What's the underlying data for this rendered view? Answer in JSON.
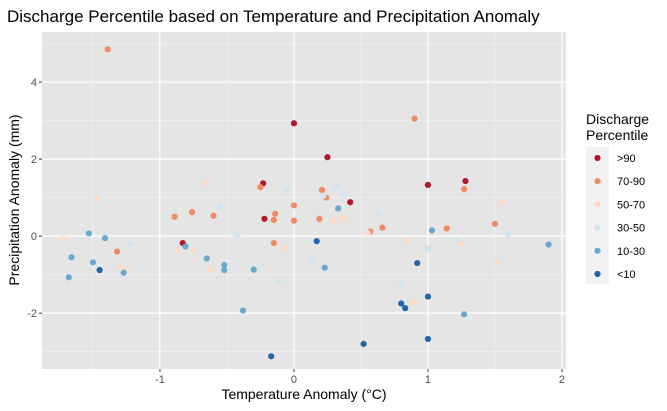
{
  "chart_data": {
    "type": "scatter",
    "title": "Discharge Percentile based on Temperature and Precipitation Anomaly",
    "xlabel": "Temperature Anomaly (°C)",
    "ylabel": "Precipitation Anomaly (mm)",
    "xlim": [
      -1.88,
      2.03
    ],
    "ylim": [
      -3.45,
      5.3
    ],
    "x_ticks": [
      -1,
      0,
      1,
      2
    ],
    "x_tick_labels": [
      "-1",
      "0",
      "1",
      "2"
    ],
    "y_ticks": [
      -2,
      0,
      2,
      4
    ],
    "y_tick_labels": [
      "-2",
      "0",
      "2",
      "4"
    ],
    "grid": true,
    "background": "#e5e5e5",
    "legend": {
      "title_line1": "Discharge",
      "title_line2": "Percentile",
      "position": "right"
    },
    "series": [
      {
        "name": ">90",
        "color": "#b2182b",
        "points": [
          [
            0.0,
            2.93
          ],
          [
            0.25,
            2.05
          ],
          [
            -0.23,
            1.37
          ],
          [
            -0.22,
            0.45
          ],
          [
            0.42,
            0.88
          ],
          [
            1.0,
            1.33
          ],
          [
            1.28,
            1.43
          ],
          [
            -0.83,
            -0.18
          ]
        ]
      },
      {
        "name": "70-90",
        "color": "#ef8a62",
        "points": [
          [
            -1.39,
            4.85
          ],
          [
            0.9,
            3.05
          ],
          [
            -0.25,
            1.27
          ],
          [
            0.21,
            1.2
          ],
          [
            0.24,
            1.0
          ],
          [
            1.27,
            1.22
          ],
          [
            -0.76,
            0.62
          ],
          [
            -0.89,
            0.5
          ],
          [
            -0.6,
            0.53
          ],
          [
            -0.14,
            0.58
          ],
          [
            0.0,
            0.8
          ],
          [
            -0.15,
            0.42
          ],
          [
            0.19,
            0.45
          ],
          [
            0.0,
            0.4
          ],
          [
            1.14,
            0.2
          ],
          [
            0.57,
            0.12
          ],
          [
            0.66,
            0.22
          ],
          [
            1.5,
            0.32
          ],
          [
            -1.32,
            -0.4
          ],
          [
            -0.15,
            -0.18
          ]
        ]
      },
      {
        "name": "50-70",
        "color": "#fddbc7",
        "points": [
          [
            -1.47,
            0.97
          ],
          [
            -0.65,
            1.37
          ],
          [
            -1.72,
            -0.07
          ],
          [
            -0.75,
            -0.38
          ],
          [
            -0.87,
            -0.38
          ],
          [
            -1.25,
            -0.88
          ],
          [
            -1.3,
            -0.8
          ],
          [
            -0.62,
            -0.88
          ],
          [
            -0.07,
            -0.3
          ],
          [
            0.3,
            0.4
          ],
          [
            0.37,
            0.47
          ],
          [
            0.55,
            0.08
          ],
          [
            0.84,
            -0.12
          ],
          [
            0.9,
            -1.72
          ],
          [
            1.25,
            -0.2
          ],
          [
            1.55,
            0.88
          ],
          [
            1.52,
            -0.68
          ]
        ]
      },
      {
        "name": "30-50",
        "color": "#d1e5f0",
        "points": [
          [
            -0.55,
            0.76
          ],
          [
            -0.42,
            0.02
          ],
          [
            -0.05,
            1.2
          ],
          [
            0.22,
            1.05
          ],
          [
            0.32,
            1.3
          ],
          [
            0.38,
            1.08
          ],
          [
            0.63,
            0.6
          ],
          [
            -0.11,
            -1.15
          ],
          [
            0.13,
            -0.65
          ],
          [
            0.8,
            -1.25
          ],
          [
            1.0,
            -0.32
          ],
          [
            1.22,
            -0.1
          ],
          [
            1.6,
            0.05
          ],
          [
            -1.22,
            -0.22
          ],
          [
            -0.43,
            0.05
          ]
        ]
      },
      {
        "name": "10-30",
        "color": "#67a9cf",
        "points": [
          [
            -1.66,
            -0.55
          ],
          [
            -1.68,
            -1.07
          ],
          [
            -1.53,
            0.07
          ],
          [
            -1.5,
            -0.68
          ],
          [
            -1.41,
            -0.05
          ],
          [
            -1.27,
            -0.95
          ],
          [
            -0.81,
            -0.27
          ],
          [
            -0.65,
            -0.58
          ],
          [
            -0.52,
            -0.75
          ],
          [
            -0.52,
            -0.88
          ],
          [
            -0.38,
            -1.93
          ],
          [
            -0.3,
            -0.87
          ],
          [
            0.23,
            -0.82
          ],
          [
            0.33,
            0.72
          ],
          [
            1.03,
            0.15
          ],
          [
            1.27,
            -2.03
          ],
          [
            1.9,
            -0.22
          ]
        ]
      },
      {
        "name": "<10",
        "color": "#2166ac",
        "points": [
          [
            -1.45,
            -0.88
          ],
          [
            -0.17,
            -3.12
          ],
          [
            0.17,
            -0.13
          ],
          [
            0.52,
            -2.8
          ],
          [
            0.8,
            -1.75
          ],
          [
            0.83,
            -1.87
          ],
          [
            0.92,
            -0.7
          ],
          [
            1.0,
            -1.57
          ],
          [
            1.0,
            -2.67
          ]
        ]
      }
    ]
  }
}
